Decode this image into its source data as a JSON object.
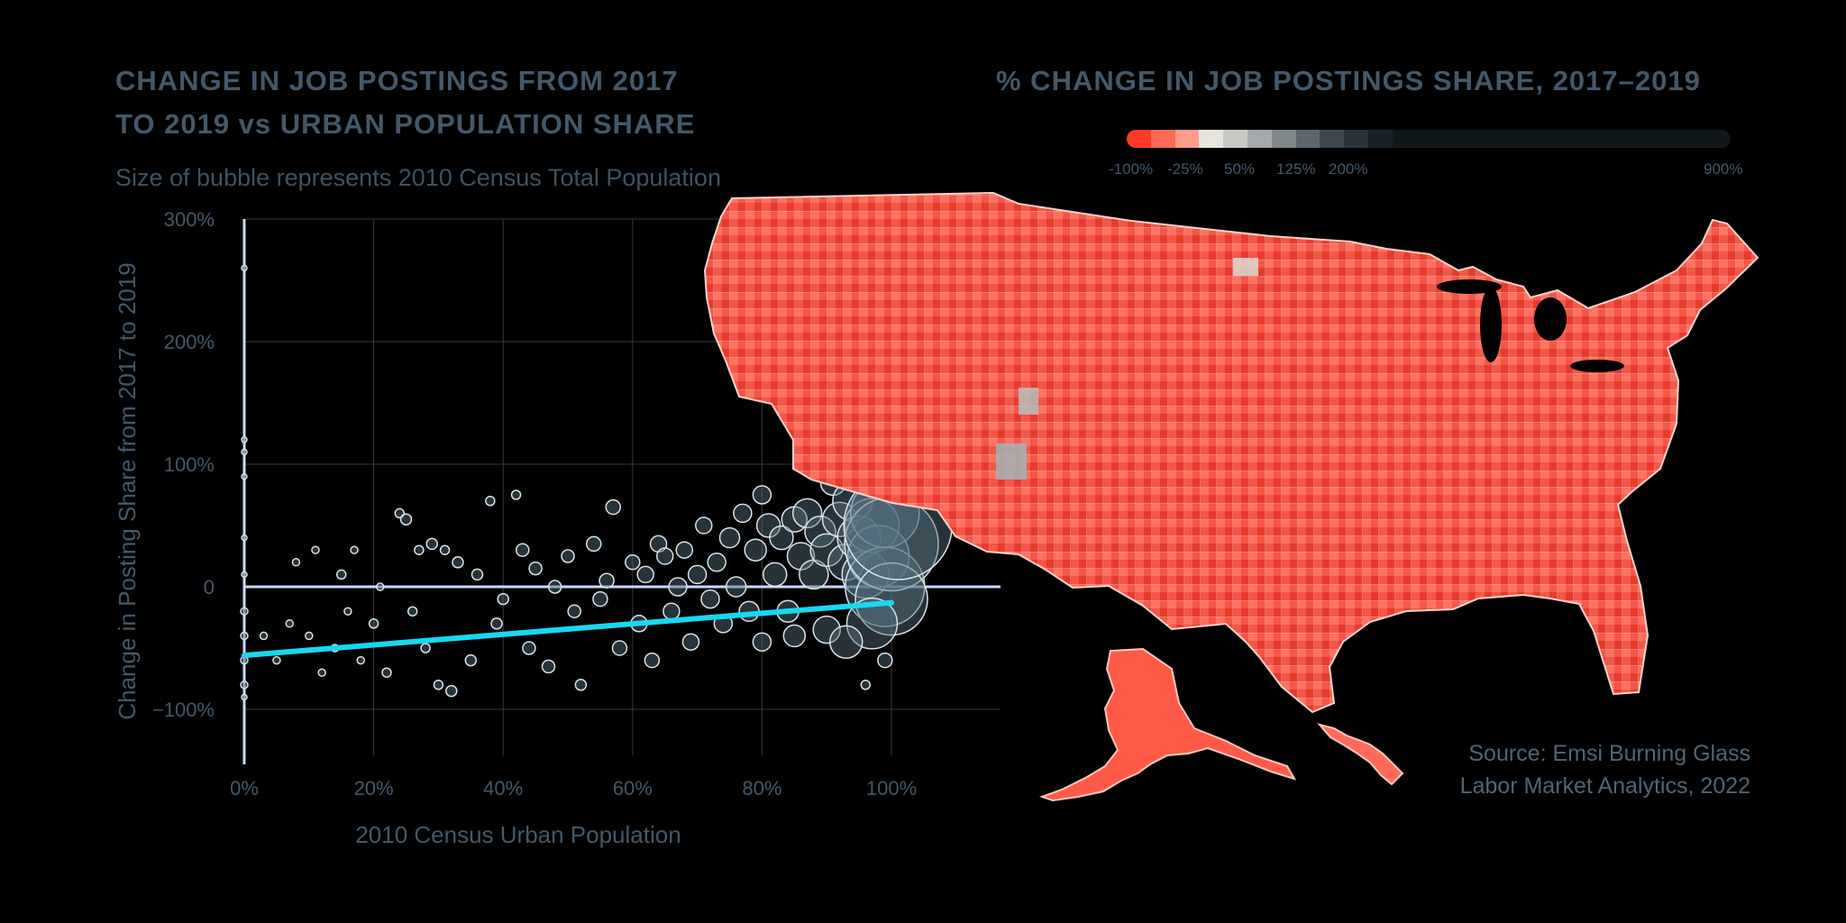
{
  "left_chart": {
    "title_line1": "CHANGE IN JOB POSTINGS FROM 2017",
    "title_line2": "TO 2019 vs URBAN POPULATION SHARE",
    "subtitle": "Size of bubble represents 2010 Census Total Population"
  },
  "right_chart": {
    "title": "% CHANGE IN JOB POSTINGS SHARE, 2017–2019",
    "legend_labels": [
      "-100%",
      "-25%",
      "50%",
      "125%",
      "200%",
      "900%"
    ],
    "legend_colors": [
      "#ff3b28",
      "#ff6a55",
      "#ff9c8a",
      "#e8e4dc",
      "#c8c8c4",
      "#a4a9ab",
      "#7f878b",
      "#5d676d",
      "#3e4850",
      "#2a333a",
      "#1a2228",
      "#10171c"
    ],
    "source_line1": "Source: Emsi Burning Glass",
    "source_line2": "Labor Market Analytics, 2022"
  },
  "chart_data": [
    {
      "type": "scatter",
      "title": "CHANGE IN JOB POSTINGS FROM 2017 TO 2019 vs URBAN POPULATION SHARE",
      "subtitle": "Size of bubble represents 2010 Census Total Population",
      "xlabel": "2010 Census Urban Population",
      "ylabel": "Change in Posting Share from 2017 to 2019",
      "xlim": [
        0,
        1.16
      ],
      "ylim": [
        -1.4,
        3.0
      ],
      "x_ticks": [
        0,
        0.2,
        0.4,
        0.6,
        0.8,
        1.0
      ],
      "x_tick_labels": [
        "0%",
        "20%",
        "40%",
        "60%",
        "80%",
        "100%"
      ],
      "y_ticks": [
        3.0,
        2.0,
        1.0,
        0,
        -1.0
      ],
      "y_tick_labels": [
        "300%",
        "200%",
        "100%",
        "0",
        "−100%"
      ],
      "grid": true,
      "trend_line": {
        "x": [
          0,
          1.0
        ],
        "y": [
          -0.56,
          -0.13
        ],
        "color": "#16d9f0"
      },
      "colors": {
        "bubble_fill": "#56707e",
        "bubble_stroke": "#d9e3ea",
        "axis": "#c8d8ff",
        "grid": "#3a3a3a"
      },
      "points": [
        [
          0,
          2.6,
          3
        ],
        [
          0,
          1.2,
          3
        ],
        [
          0,
          1.1,
          3
        ],
        [
          0,
          0.9,
          3
        ],
        [
          0,
          0.4,
          3
        ],
        [
          0,
          0.1,
          3
        ],
        [
          0,
          -0.2,
          4
        ],
        [
          0,
          -0.4,
          4
        ],
        [
          0,
          -0.6,
          4
        ],
        [
          0,
          -0.8,
          4
        ],
        [
          0,
          -0.9,
          3
        ],
        [
          0.03,
          -0.4,
          4
        ],
        [
          0.05,
          -0.6,
          4
        ],
        [
          0.07,
          -0.3,
          4
        ],
        [
          0.08,
          0.2,
          4
        ],
        [
          0.1,
          -0.4,
          4
        ],
        [
          0.11,
          0.3,
          4
        ],
        [
          0.12,
          -0.7,
          4
        ],
        [
          0.14,
          -0.5,
          4
        ],
        [
          0.15,
          0.1,
          5
        ],
        [
          0.16,
          -0.2,
          4
        ],
        [
          0.17,
          0.3,
          4
        ],
        [
          0.18,
          -0.6,
          4
        ],
        [
          0.2,
          -0.3,
          5
        ],
        [
          0.21,
          0.0,
          4
        ],
        [
          0.22,
          -0.7,
          5
        ],
        [
          0.24,
          0.6,
          5
        ],
        [
          0.25,
          0.55,
          6
        ],
        [
          0.26,
          -0.2,
          5
        ],
        [
          0.27,
          0.3,
          5
        ],
        [
          0.28,
          -0.5,
          5
        ],
        [
          0.29,
          0.35,
          6
        ],
        [
          0.3,
          -0.8,
          5
        ],
        [
          0.31,
          0.3,
          5
        ],
        [
          0.32,
          -0.85,
          6
        ],
        [
          0.33,
          0.2,
          6
        ],
        [
          0.35,
          -0.6,
          6
        ],
        [
          0.36,
          0.1,
          6
        ],
        [
          0.38,
          0.7,
          5
        ],
        [
          0.39,
          -0.3,
          6
        ],
        [
          0.4,
          -0.1,
          6
        ],
        [
          0.42,
          0.75,
          5
        ],
        [
          0.43,
          0.3,
          7
        ],
        [
          0.44,
          -0.5,
          7
        ],
        [
          0.45,
          0.15,
          7
        ],
        [
          0.47,
          -0.65,
          7
        ],
        [
          0.48,
          0.0,
          7
        ],
        [
          0.5,
          0.25,
          7
        ],
        [
          0.51,
          -0.2,
          7
        ],
        [
          0.52,
          -0.8,
          6
        ],
        [
          0.54,
          0.35,
          8
        ],
        [
          0.55,
          -0.1,
          8
        ],
        [
          0.56,
          0.05,
          8
        ],
        [
          0.57,
          0.65,
          8
        ],
        [
          0.58,
          -0.5,
          8
        ],
        [
          0.6,
          0.2,
          8
        ],
        [
          0.61,
          -0.3,
          9
        ],
        [
          0.62,
          0.1,
          9
        ],
        [
          0.63,
          -0.6,
          8
        ],
        [
          0.64,
          0.35,
          9
        ],
        [
          0.65,
          0.25,
          9
        ],
        [
          0.66,
          -0.2,
          9
        ],
        [
          0.67,
          0.0,
          10
        ],
        [
          0.68,
          0.3,
          9
        ],
        [
          0.69,
          -0.45,
          9
        ],
        [
          0.7,
          0.1,
          10
        ],
        [
          0.71,
          0.5,
          9
        ],
        [
          0.72,
          -0.1,
          10
        ],
        [
          0.73,
          0.2,
          10
        ],
        [
          0.74,
          -0.3,
          10
        ],
        [
          0.75,
          0.4,
          11
        ],
        [
          0.76,
          0.0,
          11
        ],
        [
          0.77,
          0.6,
          10
        ],
        [
          0.78,
          -0.2,
          11
        ],
        [
          0.79,
          0.3,
          12
        ],
        [
          0.8,
          0.75,
          10
        ],
        [
          0.81,
          0.5,
          13
        ],
        [
          0.82,
          0.1,
          13
        ],
        [
          0.83,
          0.4,
          13
        ],
        [
          0.84,
          -0.2,
          12
        ],
        [
          0.85,
          0.55,
          14
        ],
        [
          0.86,
          0.25,
          15
        ],
        [
          0.87,
          0.6,
          16
        ],
        [
          0.88,
          0.1,
          16
        ],
        [
          0.89,
          0.45,
          17
        ],
        [
          0.9,
          0.3,
          18
        ],
        [
          0.91,
          0.85,
          14
        ],
        [
          0.92,
          0.55,
          19
        ],
        [
          0.93,
          0.2,
          20
        ],
        [
          0.94,
          0.7,
          22
        ],
        [
          0.95,
          0.4,
          24
        ],
        [
          0.96,
          0.9,
          16
        ],
        [
          0.96,
          0.1,
          26
        ],
        [
          0.97,
          0.5,
          30
        ],
        [
          0.98,
          0.25,
          34
        ],
        [
          0.99,
          0.6,
          38
        ],
        [
          0.99,
          0.0,
          44
        ],
        [
          1.0,
          0.35,
          52
        ],
        [
          1.0,
          -0.1,
          40
        ],
        [
          1.01,
          0.5,
          60
        ],
        [
          0.97,
          -0.3,
          28
        ],
        [
          0.9,
          -0.35,
          15
        ],
        [
          0.85,
          -0.4,
          12
        ],
        [
          0.8,
          -0.45,
          10
        ],
        [
          0.93,
          -0.45,
          18
        ],
        [
          0.96,
          -0.8,
          5
        ],
        [
          0.99,
          -0.6,
          8
        ]
      ]
    },
    {
      "type": "heatmap",
      "title": "% CHANGE IN JOB POSTINGS SHARE, 2017–2019",
      "legend_labels": [
        "-100%",
        "-25%",
        "50%",
        "125%",
        "200%",
        "900%"
      ]
    }
  ]
}
